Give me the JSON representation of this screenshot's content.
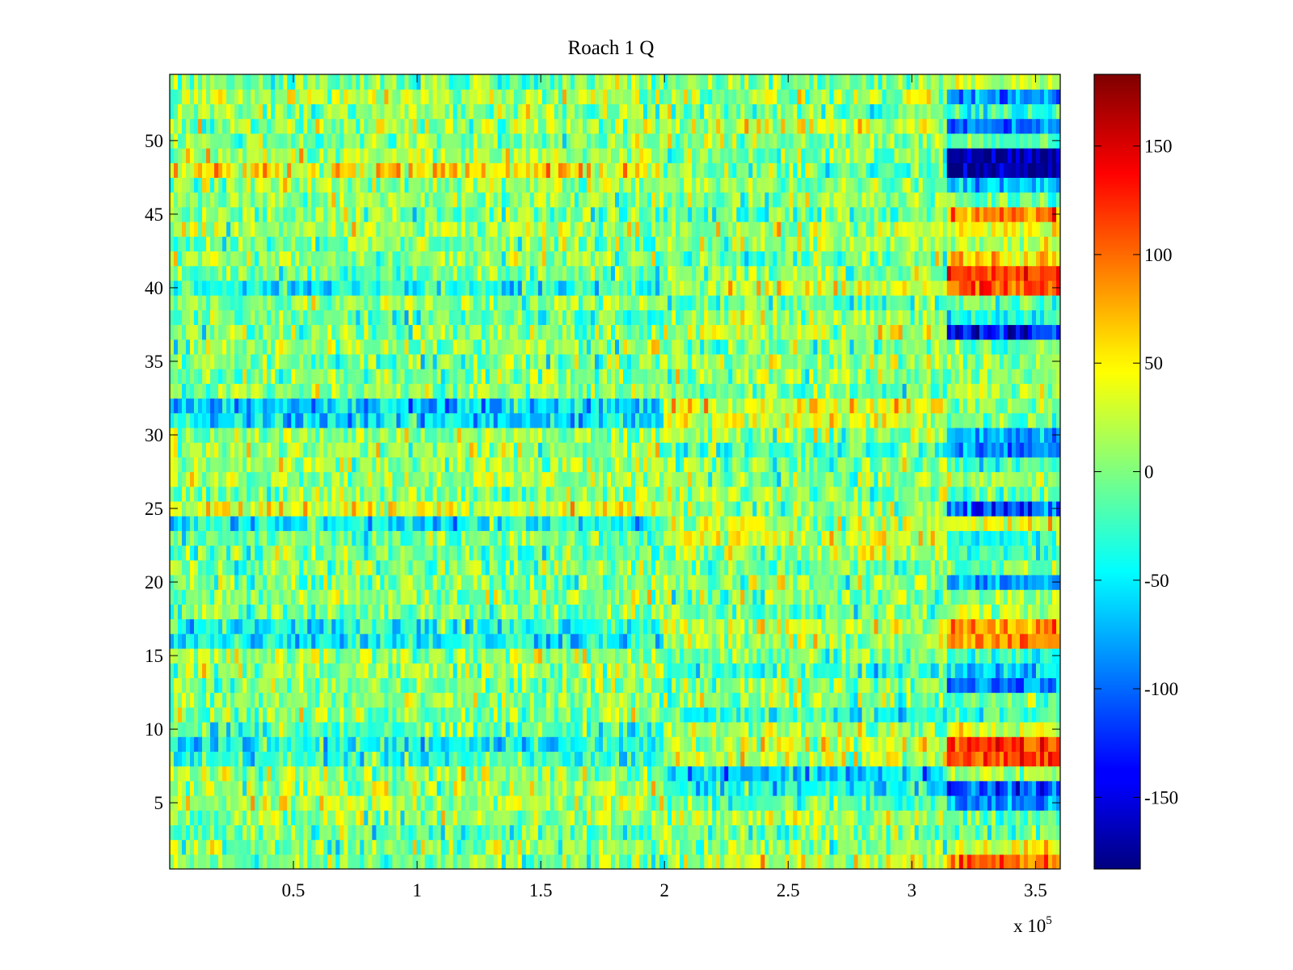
{
  "chart_data": {
    "type": "heatmap",
    "title": "Roach 1 Q",
    "xlabel": "",
    "ylabel": "",
    "x_range": [
      0,
      360000
    ],
    "y_range": [
      1,
      54
    ],
    "x_ticks": [
      50000,
      100000,
      150000,
      200000,
      250000,
      300000,
      350000
    ],
    "x_tick_labels": [
      "0.5",
      "1",
      "1.5",
      "2",
      "2.5",
      "3",
      "3.5"
    ],
    "x_multiplier_label": {
      "base": "x 10",
      "exponent": "5"
    },
    "y_ticks": [
      5,
      10,
      15,
      20,
      25,
      30,
      35,
      40,
      45,
      50
    ],
    "y_tick_labels": [
      "5",
      "10",
      "15",
      "20",
      "25",
      "30",
      "35",
      "40",
      "45",
      "50"
    ],
    "colorbar": {
      "colormap": "jet",
      "range": [
        -183,
        183
      ],
      "ticks": [
        -150,
        -100,
        -50,
        0,
        50,
        100,
        150
      ],
      "tick_labels": [
        "-150",
        "-100",
        "-50",
        "0",
        "50",
        "100",
        "150"
      ]
    },
    "segments": [
      {
        "x_start": 0,
        "x_end": 200000
      },
      {
        "x_start": 200000,
        "x_end": 315000
      },
      {
        "x_start": 315000,
        "x_end": 360000
      }
    ],
    "row_mean_values": {
      "description_rows": "rows 1..54, mean Q value per segment",
      "segment_1": [
        -5,
        5,
        -10,
        5,
        15,
        10,
        10,
        -30,
        -40,
        -15,
        5,
        0,
        -5,
        10,
        10,
        -40,
        -35,
        0,
        5,
        -5,
        0,
        -10,
        -5,
        -45,
        40,
        0,
        15,
        5,
        10,
        5,
        -55,
        -60,
        5,
        0,
        -5,
        5,
        0,
        -10,
        5,
        -40,
        -5,
        5,
        0,
        10,
        0,
        5,
        10,
        50,
        15,
        0,
        10,
        5,
        20,
        0
      ],
      "segment_2": [
        25,
        5,
        -5,
        10,
        -10,
        -35,
        -60,
        25,
        20,
        10,
        -30,
        0,
        10,
        -25,
        -5,
        10,
        25,
        -10,
        0,
        5,
        -5,
        15,
        30,
        20,
        5,
        10,
        5,
        0,
        -15,
        10,
        30,
        35,
        -5,
        5,
        10,
        -5,
        25,
        10,
        -10,
        35,
        5,
        0,
        10,
        15,
        -10,
        5,
        5,
        -10,
        0,
        5,
        25,
        -5,
        10,
        0
      ],
      "segment_3": [
        90,
        40,
        -10,
        -20,
        -90,
        -110,
        10,
        110,
        120,
        45,
        -20,
        -5,
        -90,
        -55,
        -30,
        80,
        85,
        20,
        5,
        -80,
        -5,
        -25,
        -30,
        40,
        -105,
        -10,
        10,
        -25,
        -90,
        -80,
        -5,
        10,
        15,
        5,
        0,
        -5,
        -140,
        -35,
        -10,
        110,
        120,
        60,
        15,
        40,
        90,
        -10,
        -60,
        -175,
        -165,
        -20,
        -100,
        -35,
        -90,
        30
      ]
    }
  }
}
